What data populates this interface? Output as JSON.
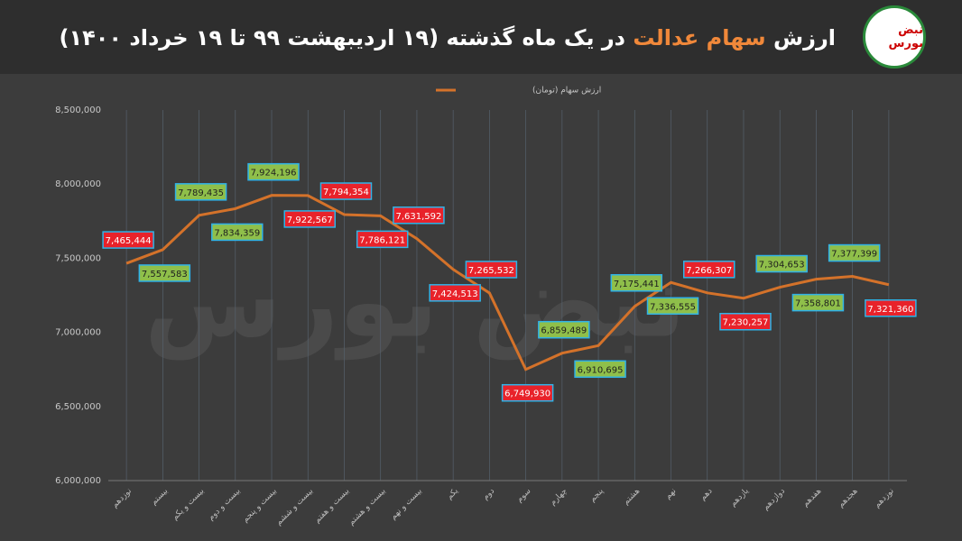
{
  "header": {
    "title_start": "ارزش",
    "title_highlight": "سهام عدالت",
    "title_end": "در یک ماه گذشته (۱۹ اردیبهشت ۹۹ تا ۱۹ خرداد ۱۴۰۰)",
    "highlight_color": "#f0883a",
    "logo": "نبض بورس"
  },
  "chart_data": {
    "type": "line",
    "categories": [
      "نوزدهم",
      "بیستم",
      "بیست و یکم",
      "بیست و دوم",
      "بیست و پنجم",
      "بیست و ششم",
      "بیست و هفتم",
      "بیست و هشتم",
      "بیست و نهم",
      "یکم",
      "دوم",
      "سوم",
      "چهارم",
      "پنجم",
      "هشتم",
      "نهم",
      "دهم",
      "یازدهم",
      "دوازدهم",
      "هفدهم",
      "هجدهم",
      "نوزدهم"
    ],
    "series": [
      {
        "name": "ارزش سهام (تومان)",
        "color": "#d4722a",
        "values": [
          7465444,
          7557583,
          7789435,
          7834359,
          7924196,
          7922567,
          7794354,
          7786121,
          7631592,
          7424513,
          7265532,
          6749930,
          6859489,
          6910695,
          7175441,
          7336555,
          7266307,
          7230257,
          7304653,
          7358801,
          7377399,
          7321360
        ],
        "value_labels": [
          "7,465,444",
          "7,557,583",
          "7,789,435",
          "7,834,359",
          "7,924,196",
          "7,922,567",
          "7,794,354",
          "7,786,121",
          "7,631,592",
          "7,424,513",
          "7,265,532",
          "6,749,930",
          "6,859,489",
          "6,910,695",
          "7,175,441",
          "7,336,555",
          "7,266,307",
          "7,230,257",
          "7,304,653",
          "7,358,801",
          "7,377,399",
          "7,321,360"
        ],
        "value_label_colors": [
          "#e8222a",
          "#8fbf4a",
          "#8fbf4a",
          "#8fbf4a",
          "#8fbf4a",
          "#e8222a",
          "#e8222a",
          "#e8222a",
          "#e8222a",
          "#e8222a",
          "#e8222a",
          "#e8222a",
          "#8fbf4a",
          "#8fbf4a",
          "#8fbf4a",
          "#8fbf4a",
          "#e8222a",
          "#e8222a",
          "#8fbf4a",
          "#8fbf4a",
          "#8fbf4a",
          "#e8222a"
        ]
      }
    ],
    "ylim": [
      6000000,
      8500000
    ],
    "yticks": [
      {
        "value": 6000000,
        "label": "6,000,000"
      },
      {
        "value": 6500000,
        "label": "6,500,000"
      },
      {
        "value": 7000000,
        "label": "7,000,000"
      },
      {
        "value": 7500000,
        "label": "7,500,000"
      },
      {
        "value": 8000000,
        "label": "8,000,000"
      },
      {
        "value": 8500000,
        "label": "8,500,000"
      }
    ],
    "grid": "x",
    "legend": "top"
  }
}
